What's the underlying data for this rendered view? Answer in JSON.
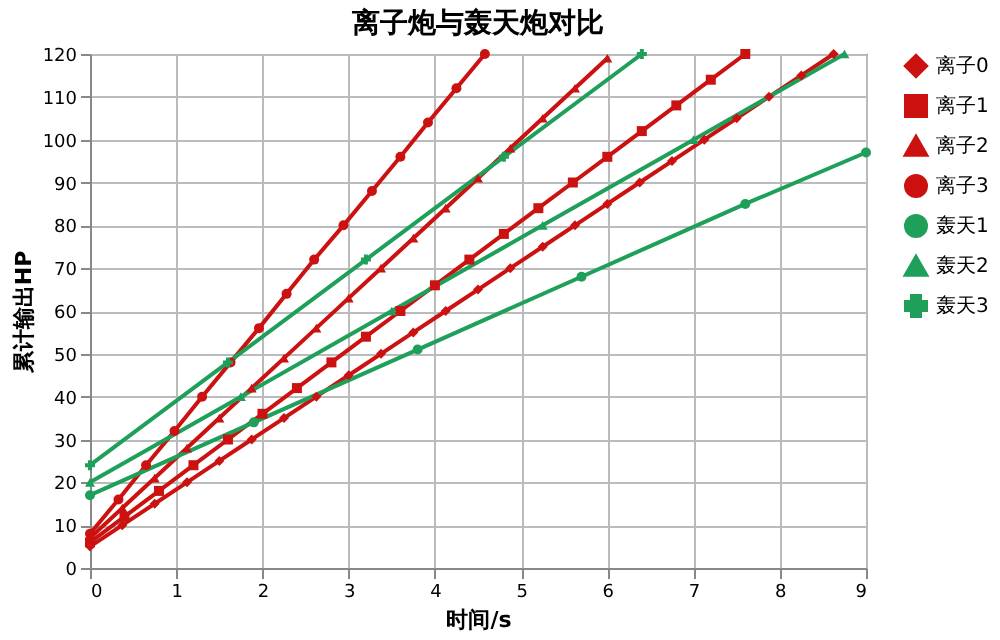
{
  "chart_data": {
    "type": "line",
    "title": "离子炮与轰天炮对比",
    "xlabel": "时间/s",
    "ylabel": "累计输出HP",
    "xlim": [
      0,
      9
    ],
    "ylim": [
      0,
      120
    ],
    "xticks": [
      0,
      1,
      2,
      3,
      4,
      5,
      6,
      7,
      8,
      9
    ],
    "yticks": [
      0,
      10,
      20,
      30,
      40,
      50,
      60,
      70,
      80,
      90,
      100,
      110,
      120
    ],
    "grid": true,
    "legend": "right",
    "line_style": "solid",
    "series": [
      {
        "name": "离子0",
        "color": "#cc1111",
        "marker": "diamond",
        "x": [
          0,
          0.375,
          0.75,
          1.125,
          1.5,
          1.875,
          2.25,
          2.625,
          3.0,
          3.375,
          3.75,
          4.125,
          4.5,
          4.875,
          5.25,
          5.625,
          6.0,
          6.375,
          6.75,
          7.125,
          7.5,
          7.875,
          8.25,
          8.625
        ],
        "values": [
          5,
          10,
          15,
          20,
          25,
          30,
          35,
          40,
          45,
          50,
          55,
          60,
          65,
          70,
          75,
          80,
          85,
          90,
          95,
          100,
          105,
          110,
          115,
          120
        ]
      },
      {
        "name": "离子1",
        "color": "#cc1111",
        "marker": "square",
        "x": [
          0,
          0.4,
          0.8,
          1.2,
          1.6,
          2.0,
          2.4,
          2.8,
          3.2,
          3.6,
          4.0,
          4.4,
          4.8,
          5.2,
          5.6,
          6.0,
          6.4,
          6.8,
          7.2,
          7.6
        ],
        "values": [
          6,
          12,
          18,
          24,
          30,
          36,
          42,
          48,
          54,
          60,
          66,
          72,
          78,
          84,
          90,
          96,
          102,
          108,
          114,
          120
        ]
      },
      {
        "name": "离子2",
        "color": "#cc1111",
        "marker": "triangle",
        "x": [
          0,
          0.375,
          0.75,
          1.125,
          1.5,
          1.875,
          2.25,
          2.625,
          3.0,
          3.375,
          3.75,
          4.125,
          4.5,
          4.875,
          5.25,
          5.625,
          6.0
        ],
        "values": [
          7,
          14,
          21,
          28,
          35,
          42,
          49,
          56,
          63,
          70,
          77,
          84,
          91,
          98,
          105,
          112,
          119
        ]
      },
      {
        "name": "离子3",
        "color": "#cc1111",
        "marker": "circle",
        "x": [
          0,
          0.33,
          0.65,
          0.98,
          1.3,
          1.63,
          1.96,
          2.28,
          2.6,
          2.94,
          3.27,
          3.6,
          3.92,
          4.25,
          4.58
        ],
        "values": [
          8,
          16,
          24,
          32,
          40,
          48,
          56,
          64,
          72,
          80,
          88,
          96,
          104,
          112,
          120
        ]
      },
      {
        "name": "轰天1",
        "color": "#1ea05a",
        "marker": "circle",
        "x": [
          0,
          1.9,
          3.8,
          5.7,
          7.6,
          9
        ],
        "values": [
          17,
          34,
          51,
          68,
          85,
          97
        ]
      },
      {
        "name": "轰天2",
        "color": "#1ea05a",
        "marker": "triangle",
        "x": [
          0,
          1.75,
          3.5,
          5.25,
          7.0,
          8.75
        ],
        "values": [
          20,
          40,
          60,
          80,
          100,
          120
        ]
      },
      {
        "name": "轰天3",
        "color": "#1ea05a",
        "marker": "cross",
        "x": [
          0,
          1.6,
          3.2,
          4.8,
          6.4
        ],
        "values": [
          24,
          48,
          72,
          96,
          120
        ]
      }
    ]
  }
}
